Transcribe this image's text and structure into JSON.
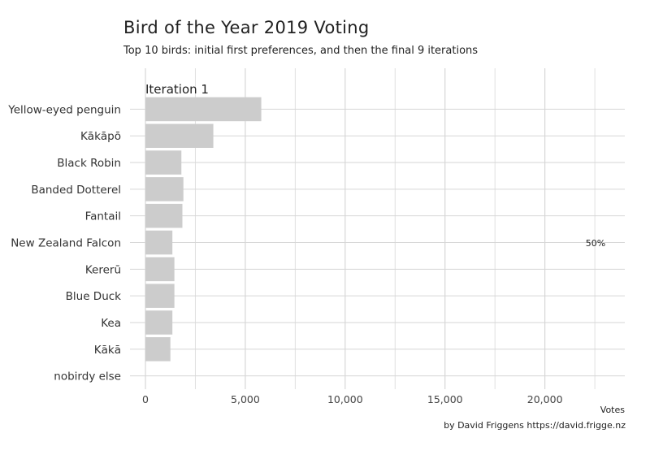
{
  "title": "Bird of the Year 2019 Voting",
  "subtitle": "Top 10 birds: initial first preferences, and then the final 9 iterations",
  "caption": "by David Friggens https://david.frigge.nz",
  "chart_data": {
    "type": "bar",
    "orientation": "horizontal",
    "iteration_label": "Iteration 1",
    "categories": [
      "Yellow-eyed penguin",
      "Kākāpō",
      "Black Robin",
      "Banded Dotterel",
      "Fantail",
      "New Zealand Falcon",
      "Kererū",
      "Blue Duck",
      "Kea",
      "Kākā",
      "nobirdy else"
    ],
    "values": [
      5800,
      3400,
      1800,
      1900,
      1850,
      1350,
      1450,
      1450,
      1350,
      1250,
      0
    ],
    "xlabel": "Votes",
    "ylabel": "",
    "xlim": [
      0,
      24000
    ],
    "x_ticks": [
      0,
      5000,
      10000,
      15000,
      20000
    ],
    "x_tick_labels": [
      "0",
      "5,000",
      "10,000",
      "15,000",
      "20,000"
    ],
    "threshold_label": "50%",
    "bar_color": "#cccccc",
    "grid": true
  }
}
